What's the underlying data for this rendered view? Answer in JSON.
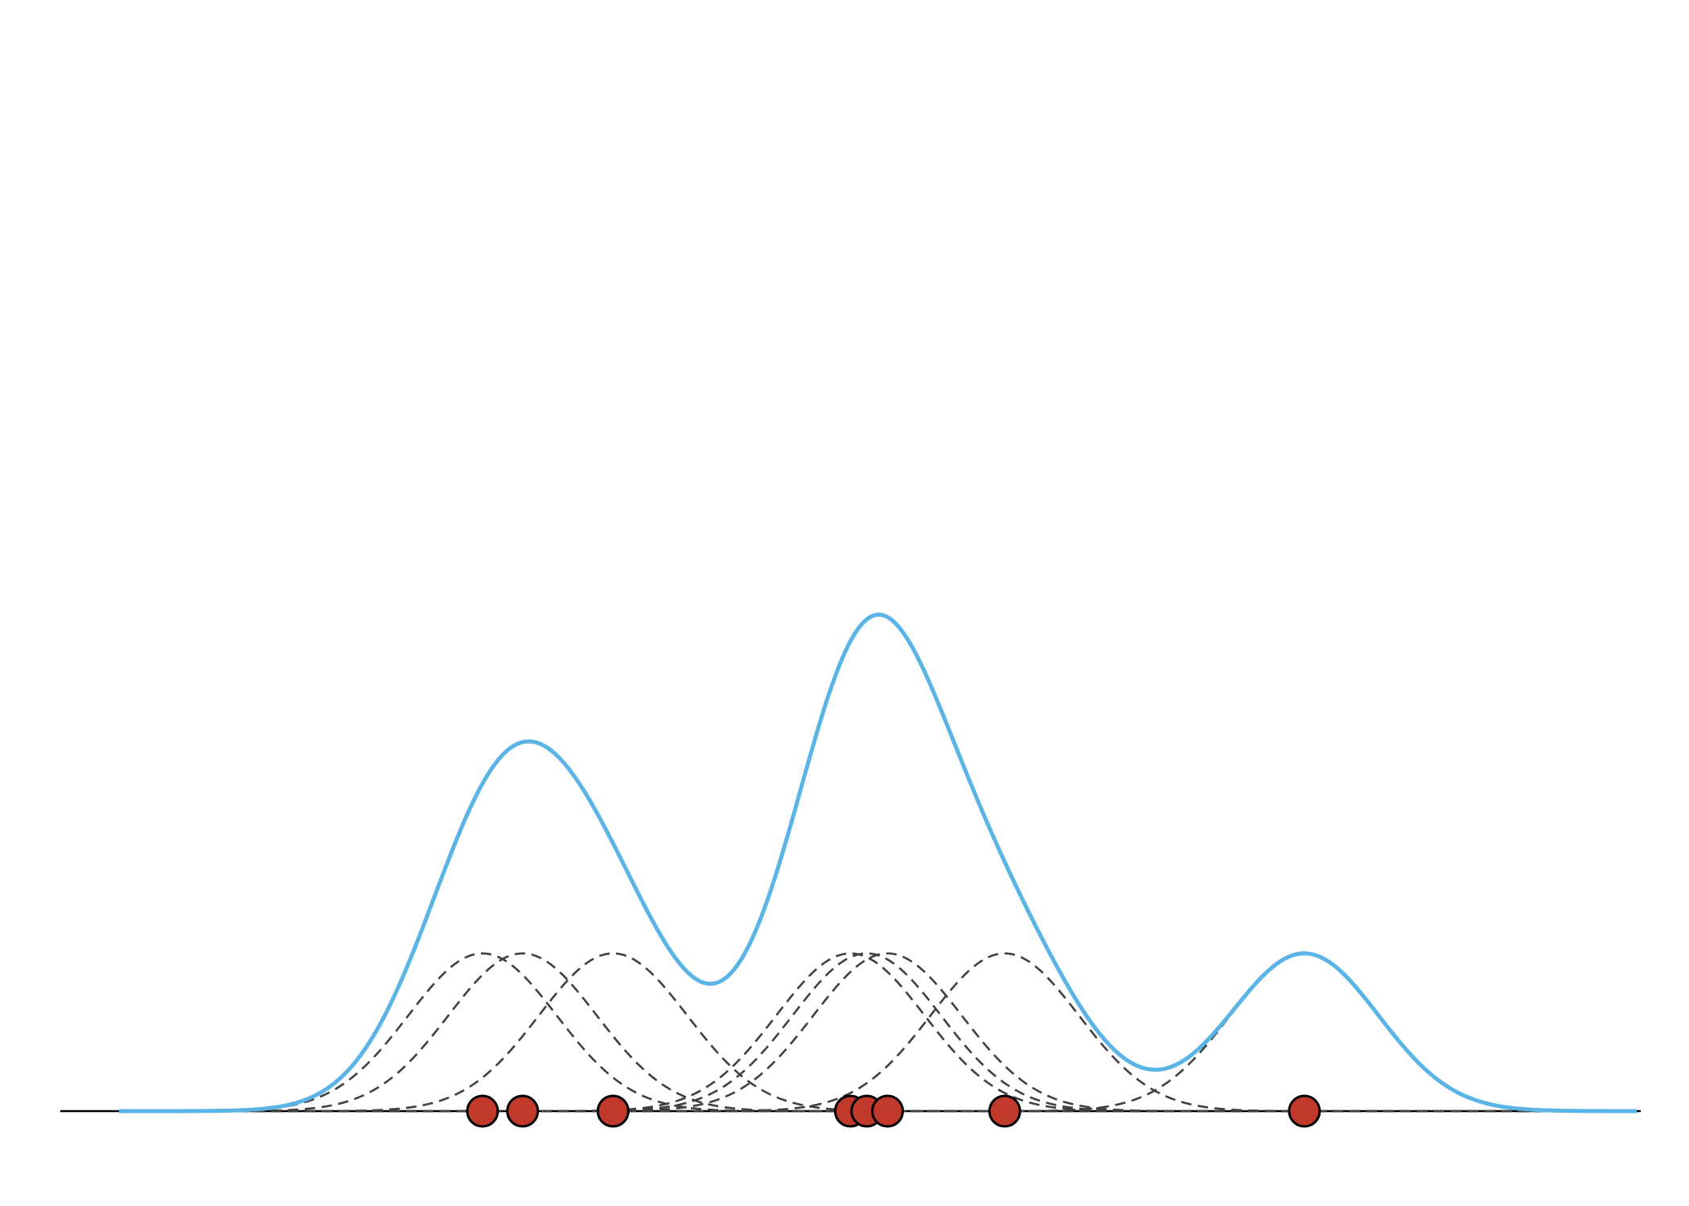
{
  "chart_data": {
    "type": "kde",
    "title": "",
    "xlabel": "",
    "ylabel": "",
    "axes_visible": false,
    "grid": false,
    "bandwidth": 0.5,
    "xlim": [
      -4.13,
      6.1
    ],
    "ylim": [
      0,
      0.7
    ],
    "points": [
      -1.68,
      -1.41,
      -0.8,
      0.8,
      0.91,
      1.05,
      1.84,
      3.86
    ],
    "colors": {
      "density": "#5ab4e5",
      "kernel": "#404040",
      "point_fill": "#c0392b",
      "point_stroke": "#000000",
      "baseline": "#000000"
    }
  }
}
